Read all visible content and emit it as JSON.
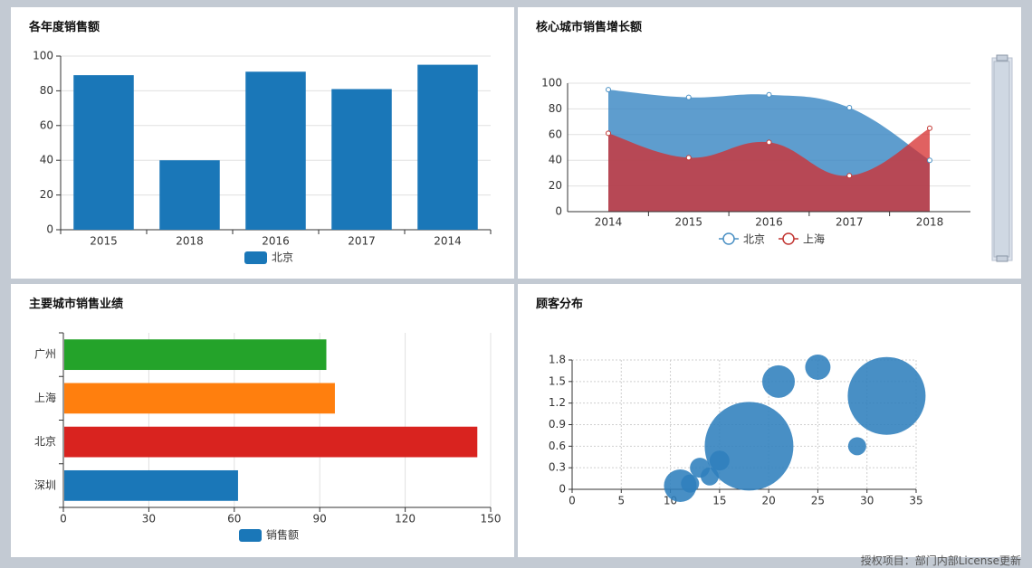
{
  "footer": {
    "license_text": "授权项目：部门内部License更新"
  },
  "chart_data": [
    {
      "id": "annual-sales",
      "type": "bar",
      "title": "各年度销售额",
      "categories": [
        "2015",
        "2018",
        "2016",
        "2017",
        "2014"
      ],
      "series": [
        {
          "name": "北京",
          "values": [
            89,
            40,
            91,
            81,
            95
          ],
          "color": "#1a77b8"
        }
      ],
      "ylim": [
        0,
        100
      ],
      "yticks": [
        0,
        20,
        40,
        60,
        80,
        100
      ],
      "grid": true,
      "legend": "bottom"
    },
    {
      "id": "core-city-growth",
      "type": "area",
      "title": "核心城市销售增长额",
      "categories": [
        "2014",
        "2015",
        "2016",
        "2017",
        "2018"
      ],
      "series": [
        {
          "name": "北京",
          "values": [
            95,
            89,
            91,
            81,
            40
          ],
          "color": "#4a90c4"
        },
        {
          "name": "上海",
          "values": [
            61,
            42,
            54,
            28,
            65
          ],
          "color": "#c23531"
        }
      ],
      "ylim": [
        0,
        100
      ],
      "yticks": [
        0,
        20,
        40,
        60,
        80,
        100
      ],
      "grid": true,
      "legend": "bottom",
      "smooth": true,
      "zoom_slider": "right"
    },
    {
      "id": "major-city-performance",
      "type": "bar",
      "orientation": "horizontal",
      "title": "主要城市销售业绩",
      "categories": [
        "深圳",
        "北京",
        "上海",
        "广州"
      ],
      "series": [
        {
          "name": "销售额",
          "values": [
            61,
            145,
            95,
            92
          ],
          "color": "#1a77b8"
        }
      ],
      "bar_colors": [
        "#1a77b8",
        "#d9231f",
        "#ff7f0e",
        "#24a32a"
      ],
      "xlim": [
        0,
        150
      ],
      "xticks": [
        0,
        30,
        60,
        90,
        120,
        150
      ],
      "grid": true,
      "legend": "bottom"
    },
    {
      "id": "customer-distribution",
      "type": "scatter",
      "title": "顾客分布",
      "points": [
        {
          "x": 11,
          "y": 0.05,
          "size": 18
        },
        {
          "x": 12,
          "y": 0.08,
          "size": 10
        },
        {
          "x": 13,
          "y": 0.3,
          "size": 11
        },
        {
          "x": 14,
          "y": 0.18,
          "size": 10
        },
        {
          "x": 15,
          "y": 0.4,
          "size": 11
        },
        {
          "x": 18,
          "y": 0.6,
          "size": 49
        },
        {
          "x": 21,
          "y": 1.5,
          "size": 18
        },
        {
          "x": 25,
          "y": 1.7,
          "size": 14
        },
        {
          "x": 29,
          "y": 0.6,
          "size": 10
        },
        {
          "x": 32,
          "y": 1.3,
          "size": 43
        }
      ],
      "color": "#2f7fbd",
      "xlim": [
        0,
        35
      ],
      "xticks": [
        0,
        5,
        10,
        15,
        20,
        25,
        30,
        35
      ],
      "ylim": [
        0,
        1.8
      ],
      "yticks": [
        "0",
        "0.3",
        "0.6",
        "0.9",
        "1.2",
        "1.5",
        "1.8"
      ],
      "grid": "dashed"
    }
  ]
}
